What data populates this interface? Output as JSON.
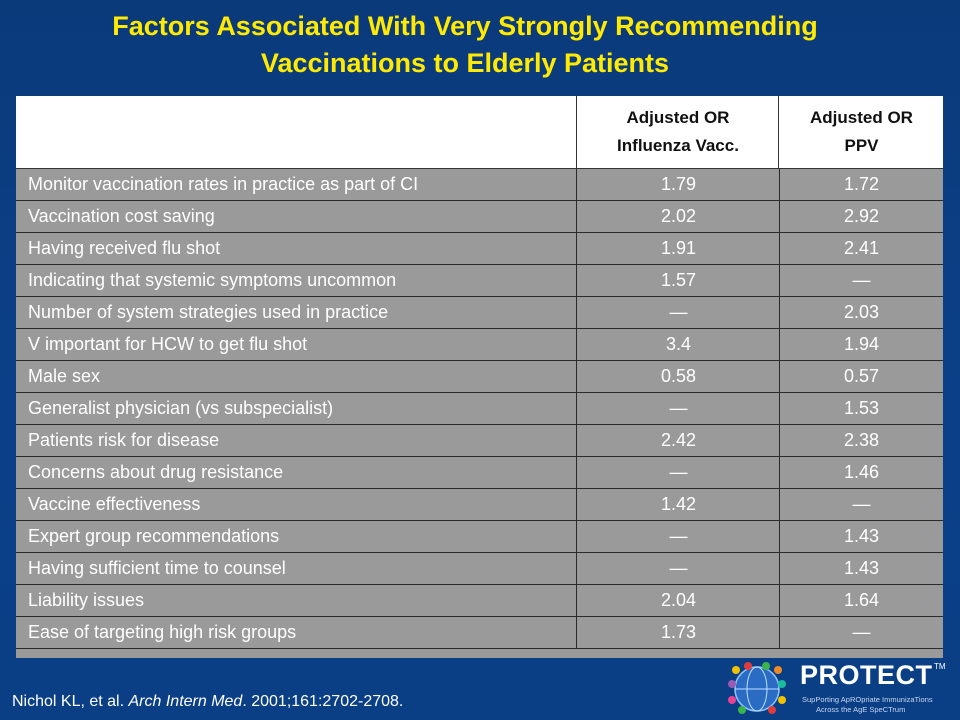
{
  "title": {
    "line1": "Factors Associated With Very Strongly Recommending",
    "line2": "Vaccinations to Elderly Patients"
  },
  "table": {
    "headers": [
      {
        "line1": "",
        "line2": ""
      },
      {
        "line1": "Adjusted OR",
        "line2": "Influenza Vacc."
      },
      {
        "line1": "Adjusted OR",
        "line2": "PPV"
      }
    ],
    "rows": [
      [
        "Monitor vaccination rates in practice as part of CI",
        "1.79",
        "1.72"
      ],
      [
        "Vaccination cost saving",
        "2.02",
        "2.92"
      ],
      [
        "Having received flu shot",
        "1.91",
        "2.41"
      ],
      [
        "Indicating that systemic symptoms uncommon",
        "1.57",
        "—"
      ],
      [
        "Number of system strategies used in practice",
        "—",
        "2.03"
      ],
      [
        "V important for HCW to get flu shot",
        "3.4",
        "1.94"
      ],
      [
        "Male sex",
        "0.58",
        "0.57"
      ],
      [
        "Generalist physician (vs subspecialist)",
        "—",
        "1.53"
      ],
      [
        "Patients risk for disease",
        "2.42",
        "2.38"
      ],
      [
        "Concerns about drug resistance",
        "—",
        "1.46"
      ],
      [
        "Vaccine effectiveness",
        "1.42",
        "—"
      ],
      [
        "Expert group recommendations",
        "—",
        "1.43"
      ],
      [
        "Having sufficient time to counsel",
        "—",
        "1.43"
      ],
      [
        "Liability issues",
        "2.04",
        "1.64"
      ],
      [
        "Ease of targeting high risk groups",
        "1.73",
        "—"
      ]
    ]
  },
  "citation": {
    "authors": "Nichol KL, et al. ",
    "journal": "Arch Intern Med",
    "rest": ". 2001;161:2702-2708."
  },
  "logo": {
    "name": "PROTECT",
    "tm": "TM",
    "tagline1": "SupPorting ApROpriate ImmunizaTions",
    "tagline2": "Across the AgE SpeCTrum",
    "icon": "globe-logo-icon"
  },
  "colors": {
    "background": "#0b3f86",
    "title": "#ffea00",
    "row_fill": "#9a9a9a",
    "header_fill": "#ffffff"
  }
}
